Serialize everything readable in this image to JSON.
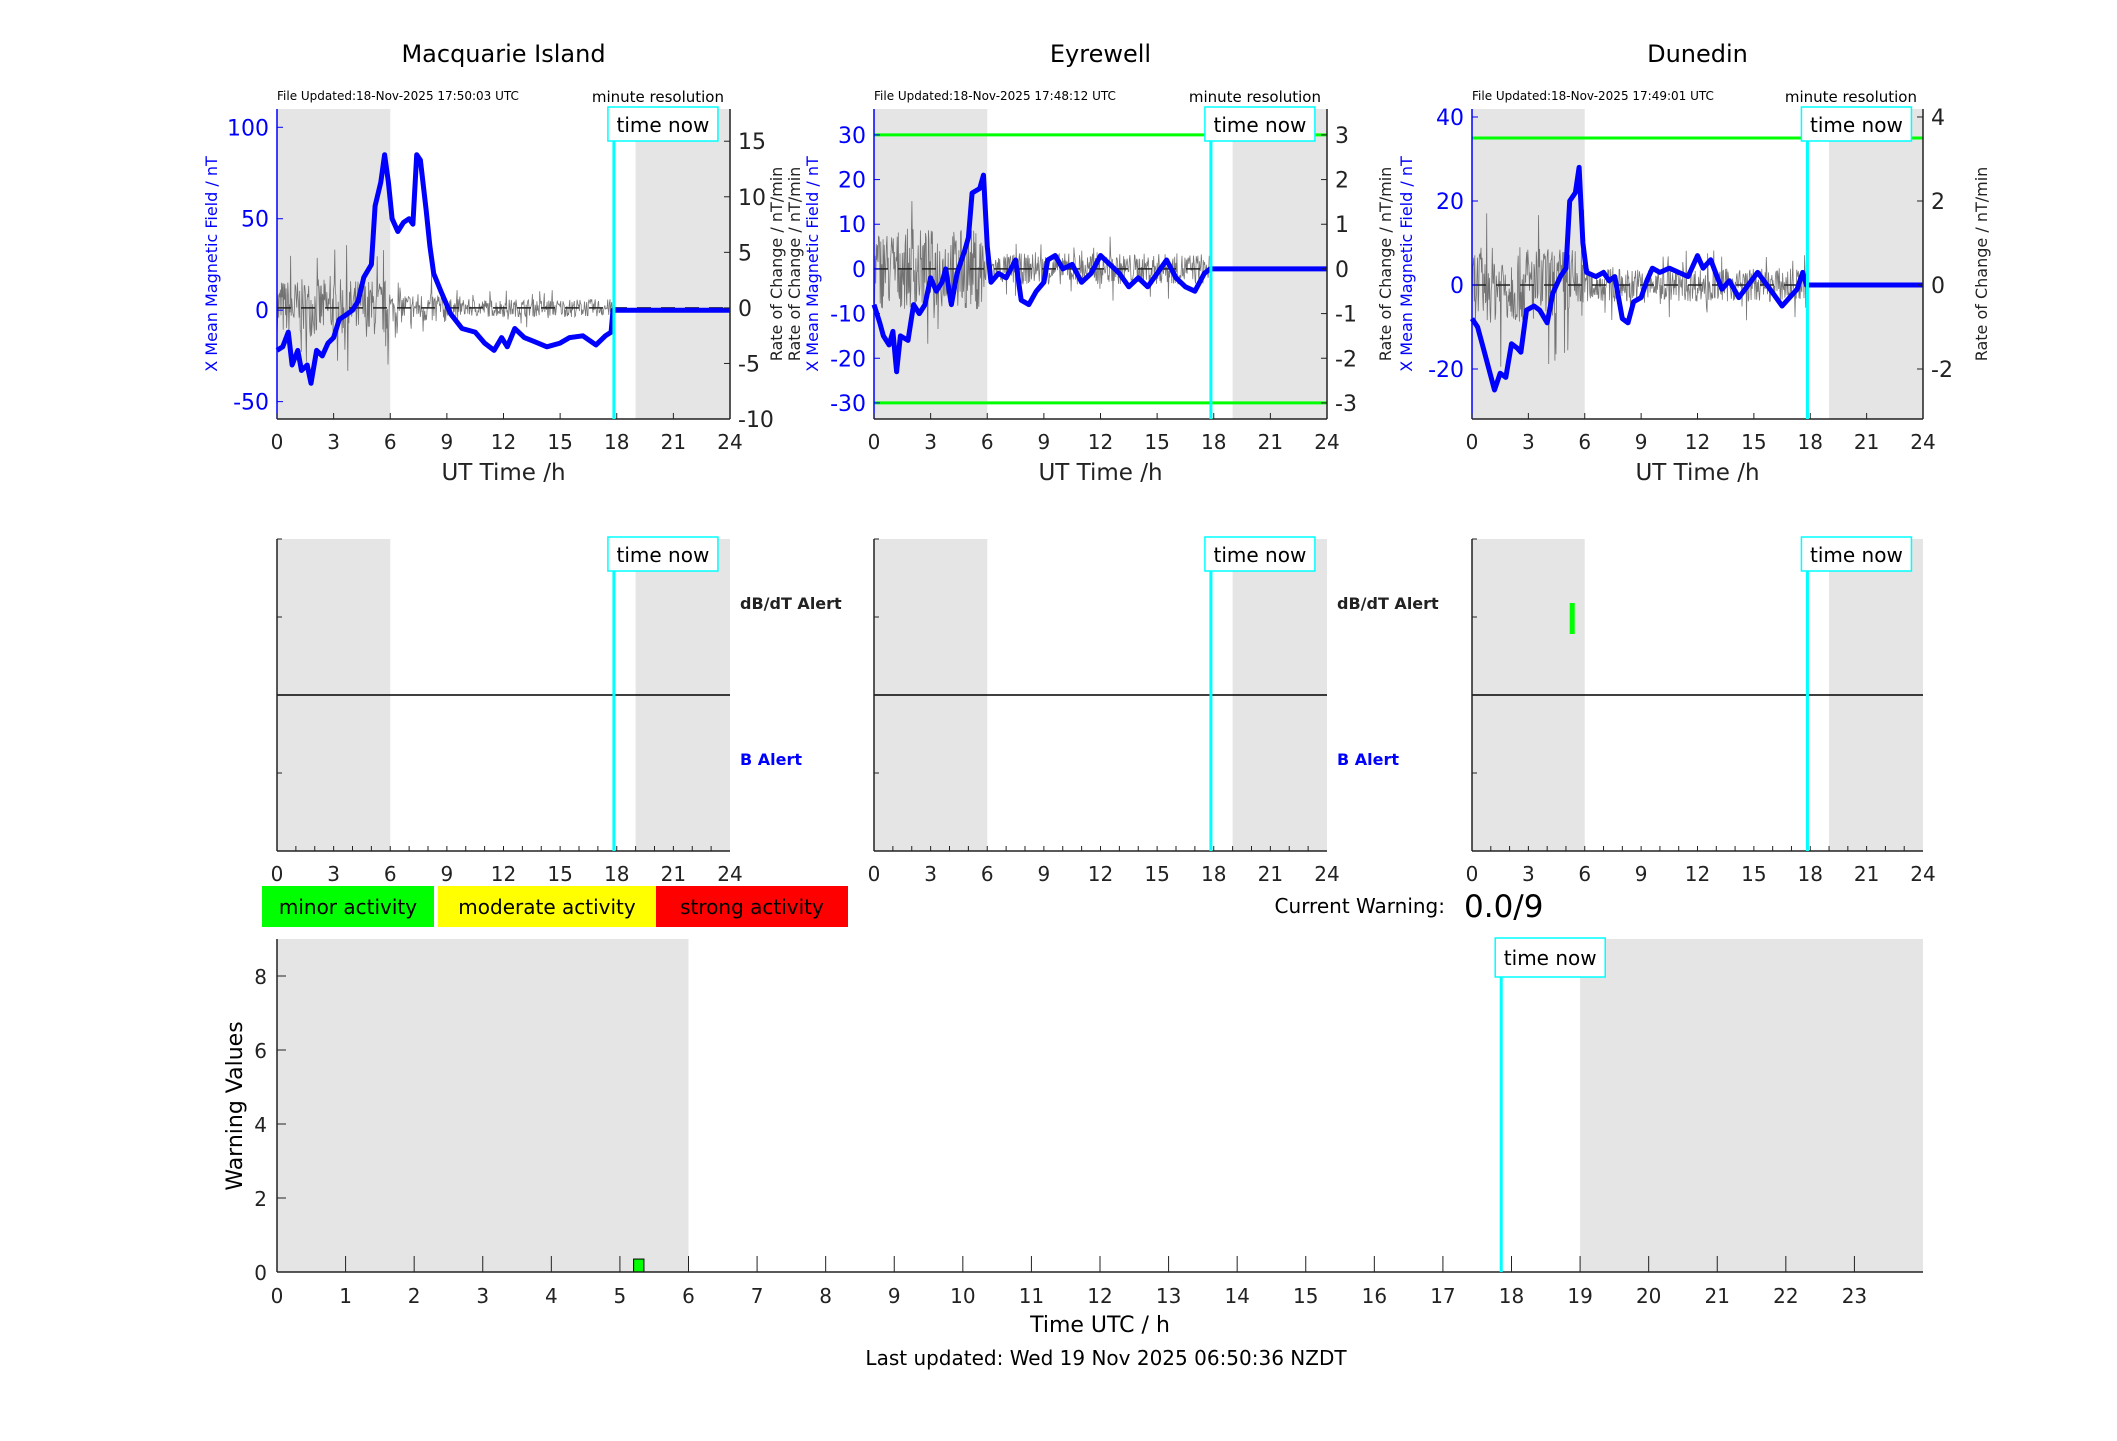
{
  "colors": {
    "field": "#0000ff",
    "rate": "#555555",
    "time_now": "#00ffff",
    "threshold": "#00ff00",
    "night_shade": "#e5e5e5",
    "minor": "#00ff00",
    "moderate": "#ffff00",
    "strong": "#ff0000"
  },
  "chart_data": [
    {
      "type": "line",
      "title": "Macquarie Island",
      "file_updated": "File Updated:18-Nov-2025 17:50:03 UTC",
      "resolution": "minute resolution",
      "xlabel": "UT Time /h",
      "ylabel": "X Mean Magnetic Field / nT",
      "ylabel_right": "Rate of Change / nT/min",
      "xlim": [
        0,
        24
      ],
      "xticks": [
        "0",
        "3",
        "6",
        "9",
        "12",
        "15",
        "18",
        "21",
        "24"
      ],
      "ylim": [
        -59.5,
        110
      ],
      "yticks": [
        "-50",
        "0",
        "50",
        "100"
      ],
      "ylim_right": [
        -10,
        17.9
      ],
      "yticks_right": [
        "-10",
        "-5",
        "0",
        "5",
        "10",
        "15"
      ],
      "shaded_hours": [
        [
          0,
          6
        ],
        [
          19,
          24
        ]
      ],
      "time_now": 17.85,
      "time_now_label": "time now",
      "thresholds_right": [],
      "series": [
        {
          "x": [
            0,
            0.3,
            0.6,
            0.8,
            1.1,
            1.3,
            1.6,
            1.8,
            2.1,
            2.4,
            2.7,
            3.0,
            3.3,
            3.6,
            4.0,
            4.3,
            4.6,
            5.0,
            5.2,
            5.5,
            5.7,
            5.9,
            6.1,
            6.4,
            6.7,
            7.0,
            7.2,
            7.4,
            7.6,
            7.9,
            8.1,
            8.3,
            8.7,
            9.2,
            9.8,
            10.5,
            11,
            11.5,
            11.9,
            12.2,
            12.6,
            13.1,
            13.6,
            14.3,
            15,
            15.5,
            16.2,
            16.9,
            17.4,
            17.7,
            17.8,
            24
          ],
          "y": [
            -22,
            -20,
            -12,
            -30,
            -22,
            -33,
            -30,
            -40,
            -22,
            -25,
            -18,
            -15,
            -5,
            -3,
            0,
            5,
            18,
            25,
            57,
            70,
            85,
            70,
            50,
            43,
            48,
            50,
            47,
            85,
            82,
            55,
            35,
            20,
            10,
            -2,
            -10,
            -12,
            -18,
            -22,
            -15,
            -20,
            -10,
            -15,
            -17,
            -20,
            -18,
            -15,
            -14,
            -19,
            -14,
            -12,
            0,
            0
          ]
        }
      ]
    },
    {
      "type": "line",
      "title": "Eyrewell",
      "file_updated": "File Updated:18-Nov-2025 17:48:12 UTC",
      "resolution": "minute resolution",
      "xlabel": "UT Time /h",
      "ylabel": "X Mean Magnetic Field / nT",
      "ylabel2": "Rate of Change / nT/min",
      "ylabel_right": "Rate of Change / nT/min",
      "xlim": [
        0,
        24
      ],
      "xticks": [
        "0",
        "3",
        "6",
        "9",
        "12",
        "15",
        "18",
        "21",
        "24"
      ],
      "ylim": [
        -33.6,
        35.8
      ],
      "yticks": [
        "-30",
        "-20",
        "-10",
        "0",
        "10",
        "20",
        "30"
      ],
      "ylim_right": [
        -3.36,
        3.58
      ],
      "yticks_right": [
        "-3",
        "-2",
        "-1",
        "0",
        "1",
        "2",
        "3"
      ],
      "shaded_hours": [
        [
          0,
          6
        ],
        [
          19,
          24
        ]
      ],
      "time_now": 17.85,
      "time_now_label": "time now",
      "thresholds_right": [
        3,
        -3
      ],
      "series": [
        {
          "x": [
            0,
            0.3,
            0.5,
            0.8,
            1.0,
            1.2,
            1.4,
            1.8,
            2.1,
            2.4,
            2.7,
            3.0,
            3.3,
            3.6,
            3.8,
            4.1,
            4.4,
            4.8,
            5.0,
            5.2,
            5.6,
            5.8,
            6.0,
            6.2,
            6.6,
            7.0,
            7.5,
            7.8,
            8.2,
            8.6,
            9.0,
            9.2,
            9.6,
            10,
            10.5,
            11,
            11.5,
            12,
            12.5,
            13,
            13.5,
            14,
            14.5,
            15,
            15.5,
            16,
            16.5,
            17,
            17.5,
            17.8,
            24
          ],
          "y": [
            -8,
            -12,
            -15,
            -17,
            -14,
            -23,
            -15,
            -16,
            -8,
            -10,
            -8,
            -2,
            -5,
            -3,
            0,
            -8,
            -1,
            4,
            7,
            17,
            18,
            21,
            5,
            -3,
            -1,
            -2,
            2,
            -7,
            -8,
            -5,
            -3,
            2,
            3,
            0,
            1,
            -3,
            -1,
            3,
            1,
            -1,
            -4,
            -2,
            -4,
            -1,
            2,
            -2,
            -4,
            -5,
            -1,
            0,
            0
          ]
        }
      ]
    },
    {
      "type": "line",
      "title": "Dunedin",
      "file_updated": "File Updated:18-Nov-2025 17:49:01 UTC",
      "resolution": "minute resolution",
      "xlabel": "UT Time /h",
      "ylabel": "X Mean Magnetic Field / nT",
      "ylabel_right": "Rate of Change / nT/min",
      "xlim": [
        0,
        24
      ],
      "xticks": [
        "0",
        "3",
        "6",
        "9",
        "12",
        "15",
        "18",
        "21",
        "24"
      ],
      "ylim": [
        -31.9,
        41.9
      ],
      "yticks": [
        "-20",
        "0",
        "20",
        "40"
      ],
      "ylim_right": [
        -3.19,
        4.19
      ],
      "yticks_right": [
        "-2",
        "0",
        "2",
        "4"
      ],
      "shaded_hours": [
        [
          0,
          6
        ],
        [
          19,
          24
        ]
      ],
      "time_now": 17.85,
      "time_now_label": "time now",
      "thresholds_right": [
        3.5,
        -3.5
      ],
      "series": [
        {
          "x": [
            0,
            0.3,
            0.6,
            0.9,
            1.2,
            1.5,
            1.8,
            2.1,
            2.4,
            2.6,
            2.9,
            3.3,
            3.6,
            4.0,
            4.3,
            4.7,
            5.0,
            5.2,
            5.5,
            5.7,
            5.9,
            6.1,
            6.6,
            7.0,
            7.3,
            7.6,
            8.0,
            8.3,
            8.6,
            9.0,
            9.3,
            9.6,
            10,
            10.5,
            11,
            11.5,
            12,
            12.3,
            12.7,
            13.3,
            13.7,
            14.2,
            14.7,
            15.2,
            15.7,
            16.5,
            17.3,
            17.6,
            17.8,
            24
          ],
          "y": [
            -8,
            -10,
            -15,
            -20,
            -25,
            -21,
            -22,
            -14,
            -15,
            -16,
            -6,
            -5,
            -6,
            -9,
            -2,
            2,
            4,
            20,
            22,
            28,
            10,
            3,
            2,
            3,
            1,
            2,
            -8,
            -9,
            -4,
            -3,
            1,
            4,
            3,
            4,
            3,
            2,
            7,
            4,
            6,
            -1,
            1,
            -3,
            0,
            3,
            0,
            -5,
            -1,
            3,
            0,
            0
          ]
        }
      ]
    }
  ],
  "alerts": {
    "db_dt_label": "dB/dT Alert",
    "b_label": "B Alert",
    "xticks": [
      "0",
      "3",
      "6",
      "9",
      "12",
      "15",
      "18",
      "21",
      "24"
    ],
    "time_now_label": "time now",
    "events": [
      {
        "station": 2,
        "type": "dB/dT",
        "start_hour": 5.2,
        "end_hour": 5.35,
        "level": "minor"
      }
    ]
  },
  "legend": {
    "minor": "minor activity",
    "moderate": "moderate activity",
    "strong": "strong activity"
  },
  "current_warning": {
    "label": "Current Warning:",
    "value": "0.0/9"
  },
  "warning_chart": {
    "type": "bar",
    "xlabel": "Time UTC / h",
    "ylabel": "Warning Values",
    "xlim": [
      0,
      24
    ],
    "ylim": [
      0,
      9
    ],
    "xticks": [
      "0",
      "1",
      "2",
      "3",
      "4",
      "5",
      "6",
      "7",
      "8",
      "9",
      "10",
      "11",
      "12",
      "13",
      "14",
      "15",
      "16",
      "17",
      "18",
      "19",
      "20",
      "21",
      "22",
      "23"
    ],
    "yticks": [
      "0",
      "2",
      "4",
      "6",
      "8"
    ],
    "shaded_hours": [
      [
        0,
        6
      ],
      [
        19,
        24
      ]
    ],
    "time_now": 17.85,
    "time_now_label": "time now",
    "bars": [
      {
        "start_hour": 5.2,
        "end_hour": 5.35,
        "value": 0.35,
        "level": "minor"
      }
    ]
  },
  "footer": {
    "last_updated": "Last updated: Wed 19 Nov 2025 06:50:36 NZDT"
  }
}
